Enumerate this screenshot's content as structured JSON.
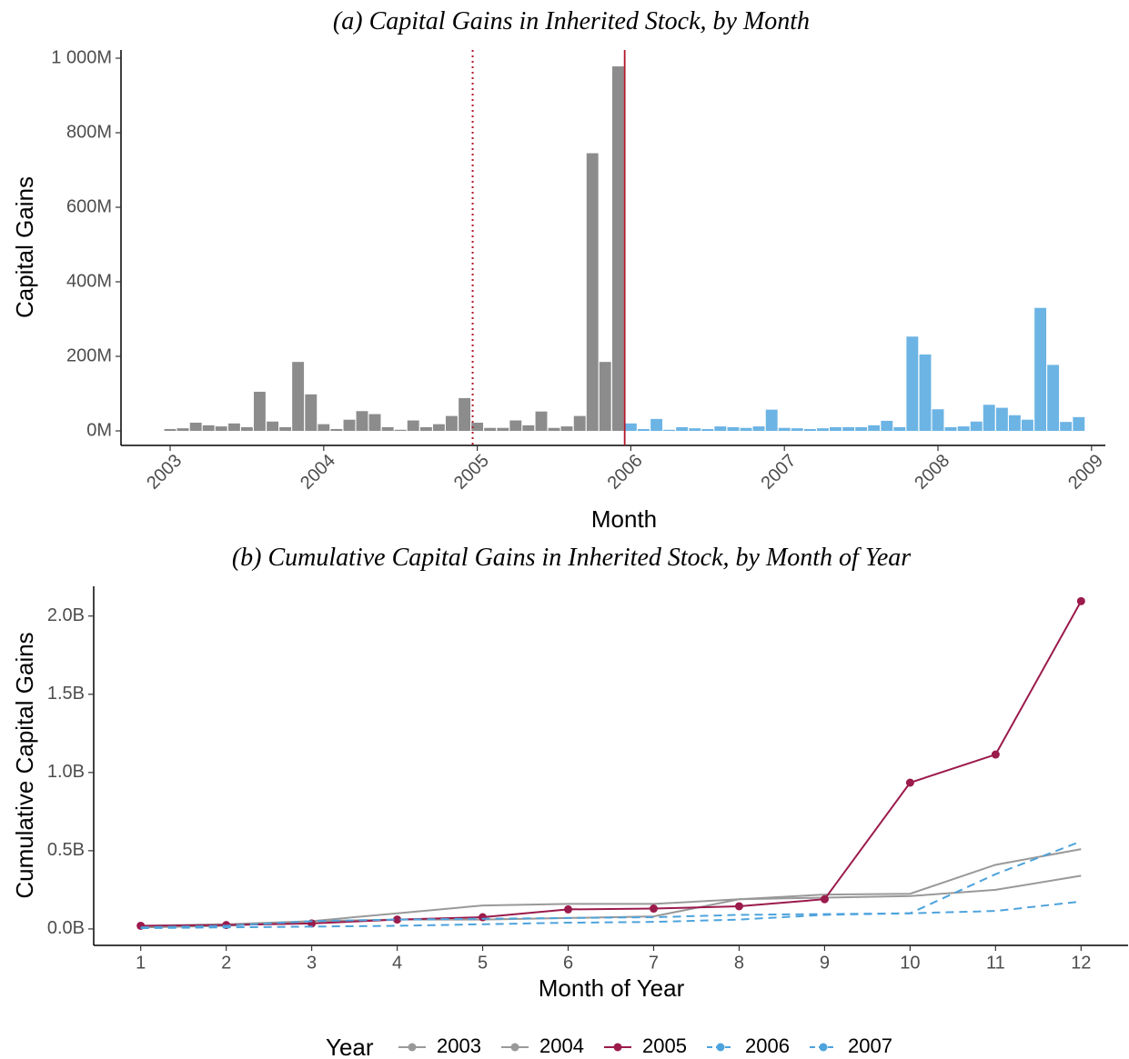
{
  "chart_data": [
    {
      "type": "bar",
      "title": "(a) Capital Gains in Inherited Stock, by Month",
      "x_label": "Month",
      "y_label": "Capital Gains",
      "x": [
        2003,
        2003.083,
        2003.167,
        2003.25,
        2003.333,
        2003.417,
        2003.5,
        2003.583,
        2003.667,
        2003.75,
        2003.833,
        2003.917,
        2004,
        2004.083,
        2004.167,
        2004.25,
        2004.333,
        2004.417,
        2004.5,
        2004.583,
        2004.667,
        2004.75,
        2004.833,
        2004.917,
        2005,
        2005.083,
        2005.167,
        2005.25,
        2005.333,
        2005.417,
        2005.5,
        2005.583,
        2005.667,
        2005.75,
        2005.833,
        2005.917,
        2006,
        2006.083,
        2006.167,
        2006.25,
        2006.333,
        2006.417,
        2006.5,
        2006.583,
        2006.667,
        2006.75,
        2006.833,
        2006.917,
        2007,
        2007.083,
        2007.167,
        2007.25,
        2007.333,
        2007.417,
        2007.5,
        2007.583,
        2007.667,
        2007.75,
        2007.833,
        2007.917,
        2008,
        2008.083,
        2008.167,
        2008.25,
        2008.333,
        2008.417,
        2008.5,
        2008.583,
        2008.667,
        2008.75,
        2008.833,
        2008.917
      ],
      "values": [
        5,
        7,
        22,
        15,
        12,
        20,
        10,
        105,
        25,
        10,
        185,
        98,
        18,
        5,
        30,
        53,
        45,
        10,
        3,
        28,
        10,
        18,
        40,
        88,
        22,
        8,
        8,
        28,
        15,
        52,
        8,
        12,
        40,
        745,
        185,
        978,
        20,
        5,
        32,
        3,
        10,
        7,
        5,
        12,
        10,
        8,
        12,
        57,
        8,
        7,
        5,
        7,
        10,
        10,
        10,
        15,
        27,
        10,
        253,
        205,
        58,
        10,
        12,
        25,
        70,
        62,
        42,
        30,
        330,
        177,
        24,
        37
      ],
      "colors": [
        "#8c8c8c",
        "#8c8c8c",
        "#8c8c8c",
        "#8c8c8c",
        "#8c8c8c",
        "#8c8c8c",
        "#8c8c8c",
        "#8c8c8c",
        "#8c8c8c",
        "#8c8c8c",
        "#8c8c8c",
        "#8c8c8c",
        "#8c8c8c",
        "#8c8c8c",
        "#8c8c8c",
        "#8c8c8c",
        "#8c8c8c",
        "#8c8c8c",
        "#8c8c8c",
        "#8c8c8c",
        "#8c8c8c",
        "#8c8c8c",
        "#8c8c8c",
        "#8c8c8c",
        "#8c8c8c",
        "#8c8c8c",
        "#8c8c8c",
        "#8c8c8c",
        "#8c8c8c",
        "#8c8c8c",
        "#8c8c8c",
        "#8c8c8c",
        "#8c8c8c",
        "#8c8c8c",
        "#8c8c8c",
        "#8c8c8c",
        "#6cb4e4",
        "#6cb4e4",
        "#6cb4e4",
        "#6cb4e4",
        "#6cb4e4",
        "#6cb4e4",
        "#6cb4e4",
        "#6cb4e4",
        "#6cb4e4",
        "#6cb4e4",
        "#6cb4e4",
        "#6cb4e4",
        "#6cb4e4",
        "#6cb4e4",
        "#6cb4e4",
        "#6cb4e4",
        "#6cb4e4",
        "#6cb4e4",
        "#6cb4e4",
        "#6cb4e4",
        "#6cb4e4",
        "#6cb4e4",
        "#6cb4e4",
        "#6cb4e4",
        "#6cb4e4",
        "#6cb4e4",
        "#6cb4e4",
        "#6cb4e4",
        "#6cb4e4",
        "#6cb4e4",
        "#6cb4e4",
        "#6cb4e4",
        "#6cb4e4",
        "#6cb4e4",
        "#6cb4e4",
        "#6cb4e4"
      ],
      "vlines": [
        {
          "x": 2004.97,
          "color": "#b2182b",
          "dash": "dotted"
        },
        {
          "x": 2005.96,
          "color": "#b2182b",
          "dash": "solid"
        }
      ],
      "xlim": [
        2002.68,
        2009.09
      ],
      "xticks": [
        2003,
        2004,
        2005,
        2006,
        2007,
        2008,
        2009
      ],
      "ylim": [
        -39,
        1022
      ],
      "yticks": [
        {
          "value": 0,
          "label": "0M"
        },
        {
          "value": 200,
          "label": "200M"
        },
        {
          "value": 400,
          "label": "400M"
        },
        {
          "value": 600,
          "label": "600M"
        },
        {
          "value": 800,
          "label": "800M"
        },
        {
          "value": 1000,
          "label": "1 000M"
        }
      ]
    },
    {
      "type": "line",
      "title": "(b) Cumulative Capital Gains in Inherited Stock, by Month of Year",
      "x_label": "Month of Year",
      "y_label": "Cumulative Capital Gains",
      "legend_title": "Year",
      "x": [
        1,
        2,
        3,
        4,
        5,
        6,
        7,
        8,
        9,
        10,
        11,
        12
      ],
      "series": [
        {
          "name": "2003",
          "color": "#999999",
          "dash": "solid",
          "points": false,
          "values": [
            0.01,
            0.02,
            0.05,
            0.1,
            0.15,
            0.16,
            0.16,
            0.19,
            0.2,
            0.21,
            0.25,
            0.34
          ]
        },
        {
          "name": "2004",
          "color": "#999999",
          "dash": "solid",
          "points": false,
          "values": [
            0.02,
            0.03,
            0.05,
            0.06,
            0.06,
            0.07,
            0.08,
            0.19,
            0.22,
            0.225,
            0.41,
            0.51
          ]
        },
        {
          "name": "2005",
          "color": "#9b1b4c",
          "dash": "solid",
          "points": true,
          "values": [
            0.02,
            0.025,
            0.035,
            0.06,
            0.075,
            0.125,
            0.13,
            0.145,
            0.19,
            0.935,
            1.115,
            2.095
          ]
        },
        {
          "name": "2006",
          "color": "#4ea3dc",
          "dash": "dashed",
          "points": false,
          "values": [
            0.01,
            0.02,
            0.05,
            0.06,
            0.065,
            0.07,
            0.075,
            0.09,
            0.095,
            0.1,
            0.35,
            0.56
          ]
        },
        {
          "name": "2007",
          "color": "#4ea3dc",
          "dash": "dashed",
          "points": false,
          "values": [
            0.005,
            0.01,
            0.015,
            0.02,
            0.03,
            0.04,
            0.045,
            0.06,
            0.09,
            0.1,
            0.115,
            0.175
          ]
        }
      ],
      "xlim": [
        0.45,
        12.55
      ],
      "xticks": [
        1,
        2,
        3,
        4,
        5,
        6,
        7,
        8,
        9,
        10,
        11,
        12
      ],
      "ylim": [
        -0.105,
        2.19
      ],
      "yticks": [
        {
          "value": 0,
          "label": "0.0B"
        },
        {
          "value": 0.5,
          "label": "0.5B"
        },
        {
          "value": 1,
          "label": "1.0B"
        },
        {
          "value": 1.5,
          "label": "1.5B"
        },
        {
          "value": 2,
          "label": "2.0B"
        }
      ]
    }
  ]
}
